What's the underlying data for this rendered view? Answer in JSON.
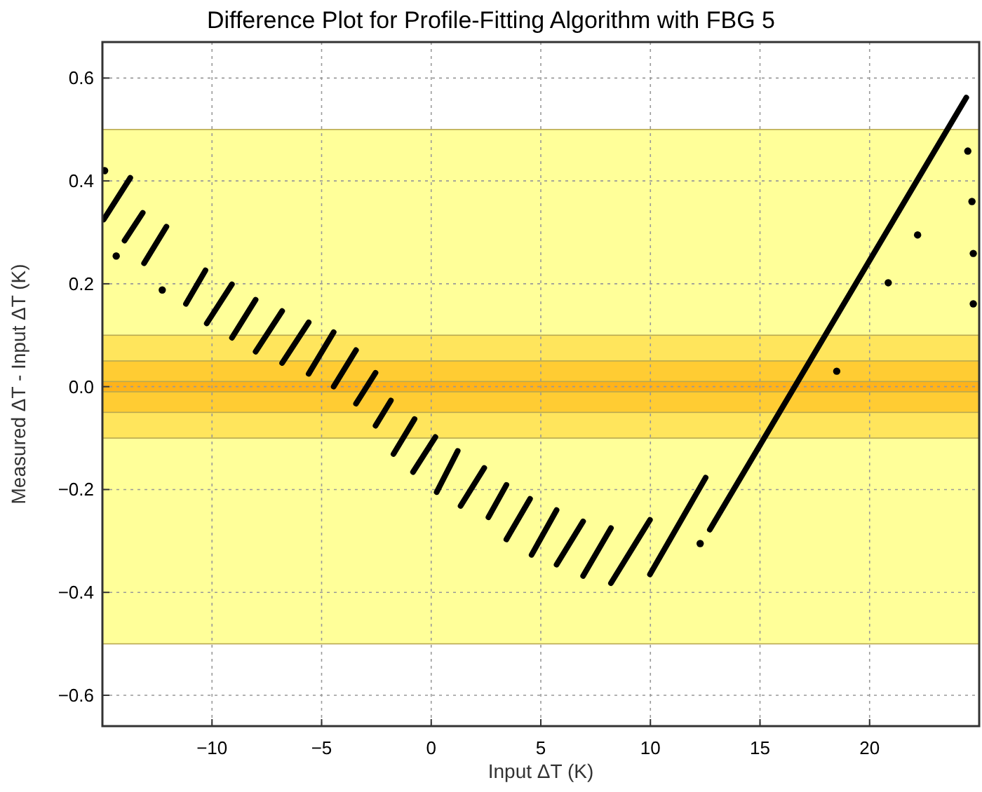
{
  "chart_data": {
    "type": "line",
    "title": "Difference Plot for Profile-Fitting Algorithm with FBG 5",
    "xlabel": "Input ΔT (K)",
    "ylabel": "Measured ΔT - Input ΔT (K)",
    "xlim": [
      -15,
      25
    ],
    "ylim": [
      -0.66,
      0.67
    ],
    "xticks": [
      {
        "value": -10,
        "label": "−10"
      },
      {
        "value": -5,
        "label": "−5"
      },
      0,
      5,
      10,
      15,
      20
    ],
    "yticks": [
      {
        "value": -0.6,
        "label": "−0.6"
      },
      {
        "value": -0.4,
        "label": "−0.4"
      },
      {
        "value": -0.2,
        "label": "−0.2"
      },
      {
        "value": 0,
        "label": "0.0"
      },
      {
        "value": 0.2,
        "label": "0.2"
      },
      {
        "value": 0.4,
        "label": "0.4"
      },
      {
        "value": 0.6,
        "label": "0.6"
      }
    ],
    "grid": true,
    "line_style": "solid",
    "marker": "none",
    "bands": [
      {
        "axis": "y",
        "from": -0.5,
        "to": 0.5,
        "color": "#ffff99"
      },
      {
        "axis": "y",
        "from": -0.1,
        "to": 0.1,
        "color": "#ffe55c"
      },
      {
        "axis": "y",
        "from": -0.05,
        "to": 0.05,
        "color": "#ffcc33"
      },
      {
        "axis": "y",
        "from": -0.01,
        "to": 0.01,
        "color": "#ffb31a"
      }
    ],
    "series": [
      {
        "color": "#000000",
        "x": [
          -14.94,
          -13.73
        ],
        "values": [
          0.325,
          0.406
        ]
      },
      {
        "type": "line",
        "color": "#000000",
        "x": [
          -13.99,
          -13.16
        ],
        "values": [
          0.284,
          0.338
        ]
      },
      {
        "type": "line",
        "color": "#000000",
        "x": [
          -13.1,
          -12.08
        ],
        "values": [
          0.24,
          0.311
        ]
      },
      {
        "type": "line",
        "color": "#000000",
        "x": [
          -11.19,
          -10.3
        ],
        "values": [
          0.161,
          0.226
        ]
      },
      {
        "type": "line",
        "color": "#000000",
        "x": [
          -10.24,
          -9.09
        ],
        "values": [
          0.123,
          0.199
        ]
      },
      {
        "type": "line",
        "color": "#000000",
        "x": [
          -9.09,
          -8.01
        ],
        "values": [
          0.095,
          0.169
        ]
      },
      {
        "type": "line",
        "color": "#000000",
        "x": [
          -8.01,
          -6.8
        ],
        "values": [
          0.068,
          0.147
        ]
      },
      {
        "type": "line",
        "color": "#000000",
        "x": [
          -6.8,
          -5.59
        ],
        "values": [
          0.046,
          0.125
        ]
      },
      {
        "type": "line",
        "color": "#000000",
        "x": [
          -5.59,
          -4.45
        ],
        "values": [
          0.025,
          0.106
        ]
      },
      {
        "type": "line",
        "color": "#000000",
        "x": [
          -4.45,
          -3.43
        ],
        "values": [
          0.0,
          0.071
        ]
      },
      {
        "type": "line",
        "color": "#000000",
        "x": [
          -3.43,
          -2.54
        ],
        "values": [
          -0.033,
          0.027
        ]
      },
      {
        "type": "line",
        "color": "#000000",
        "x": [
          -2.54,
          -1.84
        ],
        "values": [
          -0.076,
          -0.027
        ]
      },
      {
        "type": "line",
        "color": "#000000",
        "x": [
          -1.72,
          -0.76
        ],
        "values": [
          -0.131,
          -0.063
        ]
      },
      {
        "type": "line",
        "color": "#000000",
        "x": [
          -0.83,
          0.19
        ],
        "values": [
          -0.166,
          -0.098
        ]
      },
      {
        "type": "line",
        "color": "#000000",
        "x": [
          0.25,
          1.21
        ],
        "values": [
          -0.205,
          -0.125
        ]
      },
      {
        "type": "line",
        "color": "#000000",
        "x": [
          1.34,
          2.42
        ],
        "values": [
          -0.232,
          -0.158
        ]
      },
      {
        "type": "line",
        "color": "#000000",
        "x": [
          2.61,
          3.43
        ],
        "values": [
          -0.254,
          -0.191
        ]
      },
      {
        "type": "line",
        "color": "#000000",
        "x": [
          3.43,
          4.51
        ],
        "values": [
          -0.297,
          -0.218
        ]
      },
      {
        "type": "line",
        "color": "#000000",
        "x": [
          4.58,
          5.72
        ],
        "values": [
          -0.327,
          -0.24
        ]
      },
      {
        "type": "line",
        "color": "#000000",
        "x": [
          5.72,
          6.93
        ],
        "values": [
          -0.346,
          -0.262
        ]
      },
      {
        "type": "line",
        "color": "#000000",
        "x": [
          6.93,
          8.2
        ],
        "values": [
          -0.368,
          -0.275
        ]
      },
      {
        "type": "line",
        "color": "#000000",
        "x": [
          8.2,
          9.98
        ],
        "values": [
          -0.382,
          -0.259
        ]
      },
      {
        "type": "line",
        "color": "#000000",
        "x": [
          9.98,
          12.52
        ],
        "values": [
          -0.365,
          -0.177
        ]
      },
      {
        "color": "#000000",
        "x": [
          12.71,
          24.41
        ],
        "values": [
          -0.278,
          0.562
        ]
      },
      {
        "type": "scatter",
        "color": "#000000",
        "marker": "circle",
        "x": [
          -14.9,
          -14.37,
          -12.27,
          12.27,
          18.5,
          20.85,
          22.19,
          24.48,
          24.67,
          24.73,
          24.73
        ],
        "values": [
          0.42,
          0.254,
          0.188,
          -0.305,
          0.03,
          0.202,
          0.295,
          0.458,
          0.36,
          0.259,
          0.161
        ]
      }
    ]
  }
}
